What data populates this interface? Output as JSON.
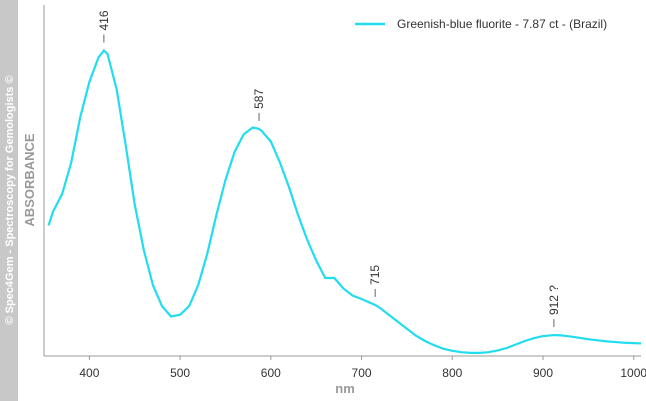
{
  "chart_data": {
    "type": "line",
    "watermark": "© Spec4Gem - Spectroscopy for Gemologists ©",
    "y_label": "ABSORBANCE",
    "x_label": "nm",
    "xlim": [
      350,
      1008
    ],
    "xticks": [
      400,
      500,
      600,
      700,
      800,
      900,
      1000
    ],
    "ylim": [
      0,
      1
    ],
    "legend": "top-right",
    "x": [
      355,
      360,
      370,
      380,
      390,
      400,
      410,
      416,
      420,
      430,
      440,
      450,
      460,
      470,
      480,
      490,
      500,
      510,
      520,
      530,
      540,
      550,
      560,
      570,
      580,
      587,
      590,
      600,
      610,
      620,
      630,
      640,
      650,
      660,
      670,
      680,
      690,
      700,
      715,
      720,
      730,
      740,
      750,
      760,
      770,
      780,
      790,
      800,
      810,
      820,
      830,
      840,
      850,
      860,
      870,
      880,
      890,
      900,
      912,
      920,
      930,
      940,
      950,
      960,
      970,
      980,
      990,
      1000,
      1008
    ],
    "series": [
      {
        "name": "Greenish-blue fluorite - 7.87 ct - (Brazil)",
        "color": "#22dcef",
        "values": [
          0.37,
          0.41,
          0.46,
          0.55,
          0.68,
          0.78,
          0.85,
          0.87,
          0.86,
          0.76,
          0.6,
          0.43,
          0.3,
          0.2,
          0.14,
          0.11,
          0.115,
          0.14,
          0.2,
          0.29,
          0.4,
          0.5,
          0.58,
          0.63,
          0.65,
          0.646,
          0.64,
          0.61,
          0.55,
          0.48,
          0.4,
          0.33,
          0.27,
          0.22,
          0.22,
          0.19,
          0.17,
          0.16,
          0.143,
          0.135,
          0.115,
          0.095,
          0.075,
          0.055,
          0.04,
          0.028,
          0.018,
          0.012,
          0.008,
          0.006,
          0.006,
          0.008,
          0.013,
          0.02,
          0.03,
          0.04,
          0.048,
          0.054,
          0.057,
          0.056,
          0.053,
          0.049,
          0.045,
          0.042,
          0.039,
          0.037,
          0.035,
          0.034,
          0.033
        ]
      }
    ],
    "annotations": [
      {
        "text": "416",
        "x": 416
      },
      {
        "text": "587",
        "x": 587
      },
      {
        "text": "715",
        "x": 715
      },
      {
        "text": "912 ?",
        "x": 912
      }
    ]
  }
}
